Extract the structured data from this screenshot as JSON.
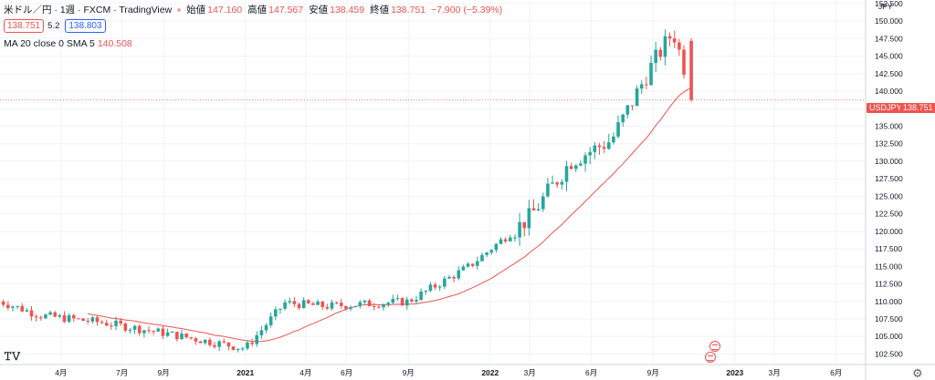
{
  "header": {
    "symbol": "米ドル／円 · 1週 · FXCM · TradingView",
    "open_label": "始値",
    "open": "147.160",
    "high_label": "高値",
    "high": "147.567",
    "low_label": "安値",
    "low": "138.459",
    "close_label": "終値",
    "close": "138.751",
    "change": "−7.900 (−5.39%)",
    "bid": "138.751",
    "spread": "5.2",
    "ask": "138.803"
  },
  "indicator": {
    "label": "MA 20 close 0 SMA 5",
    "value": "140.508"
  },
  "price_axis": {
    "currency": "JPY",
    "ticks": [
      "152.500",
      "150.000",
      "147.500",
      "145.000",
      "142.500",
      "140.000",
      "137.500",
      "135.000",
      "132.500",
      "130.000",
      "127.500",
      "125.000",
      "122.500",
      "120.000",
      "117.500",
      "115.000",
      "112.500",
      "110.000",
      "107.500",
      "105.000",
      "102.500"
    ],
    "symbol_tag": "USDJPY",
    "price_tag": "138.751"
  },
  "time_axis": {
    "labels": [
      "4月",
      "7月",
      "9月",
      "2021",
      "4月",
      "6月",
      "9月",
      "2022",
      "3月",
      "6月",
      "9月",
      "2023",
      "3月",
      "6月"
    ]
  },
  "colors": {
    "up": "#26a69a",
    "down": "#ef5350",
    "ma": "#ef5350"
  },
  "chart_data": {
    "type": "candlestick",
    "timeframe": "1W",
    "ylim": [
      101.0,
      153.0
    ],
    "key_points": {
      "dates": [
        "2020-01",
        "2020-03",
        "2020-06",
        "2020-09",
        "2021-01",
        "2021-03",
        "2021-05",
        "2021-09",
        "2021-12",
        "2022-03",
        "2022-05",
        "2022-07",
        "2022-09",
        "2022-10",
        "2022-11"
      ],
      "close": [
        110.0,
        108.0,
        107.0,
        105.5,
        103.3,
        109.8,
        109.3,
        110.0,
        115.0,
        122.0,
        130.0,
        133.0,
        144.0,
        148.5,
        138.751
      ]
    },
    "ma": {
      "type": "SMA",
      "length": 20,
      "last_value": 140.508
    },
    "last_candle": {
      "open": 147.16,
      "high": 147.567,
      "low": 138.459,
      "close": 138.751
    }
  }
}
